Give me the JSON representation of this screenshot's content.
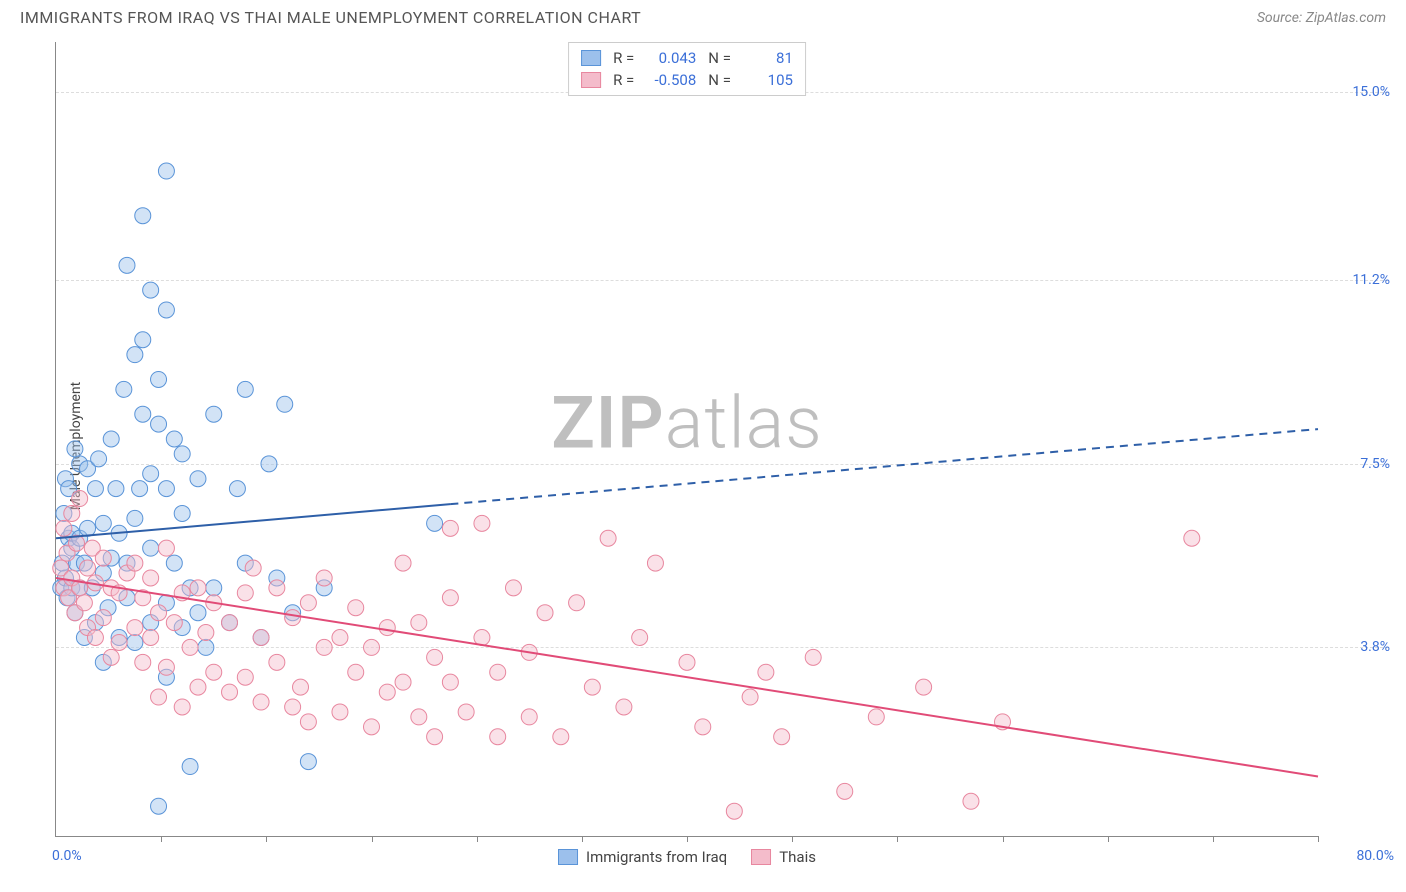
{
  "title": "IMMIGRANTS FROM IRAQ VS THAI MALE UNEMPLOYMENT CORRELATION CHART",
  "source_label": "Source:",
  "source_name": "ZipAtlas.com",
  "ylabel": "Male Unemployment",
  "watermark_bold": "ZIP",
  "watermark_light": "atlas",
  "chart": {
    "type": "scatter",
    "xlim": [
      0,
      80
    ],
    "ylim": [
      0,
      16
    ],
    "xlim_labels": [
      "0.0%",
      "80.0%"
    ],
    "ytick_values": [
      3.8,
      7.5,
      11.2,
      15.0
    ],
    "ytick_labels": [
      "3.8%",
      "7.5%",
      "11.2%",
      "15.0%"
    ],
    "xtick_count": 12,
    "grid_color": "#dddddd",
    "axis_color": "#888888",
    "background_color": "#ffffff",
    "marker_radius": 8,
    "marker_opacity": 0.45,
    "line_width": 2
  },
  "series": [
    {
      "name": "Immigrants from Iraq",
      "color_fill": "#9cc0ec",
      "color_stroke": "#5a94d8",
      "line_color": "#2e5fa8",
      "R": "0.043",
      "N": "81",
      "trend": {
        "y_at_x0": 6.0,
        "y_at_x80": 8.2,
        "solid_until_x": 25
      },
      "points": [
        [
          0.3,
          5.0
        ],
        [
          0.4,
          5.5
        ],
        [
          0.5,
          6.5
        ],
        [
          0.6,
          5.2
        ],
        [
          0.6,
          7.2
        ],
        [
          0.7,
          4.8
        ],
        [
          0.8,
          6.0
        ],
        [
          0.8,
          7.0
        ],
        [
          1.0,
          5.0
        ],
        [
          1.0,
          5.8
        ],
        [
          1.0,
          6.1
        ],
        [
          1.2,
          4.5
        ],
        [
          1.2,
          7.8
        ],
        [
          1.3,
          5.5
        ],
        [
          1.5,
          5.0
        ],
        [
          1.5,
          6.0
        ],
        [
          1.5,
          7.5
        ],
        [
          1.8,
          4.0
        ],
        [
          1.8,
          5.5
        ],
        [
          2.0,
          6.2
        ],
        [
          2.0,
          7.4
        ],
        [
          2.3,
          5.0
        ],
        [
          2.5,
          4.3
        ],
        [
          2.5,
          7.0
        ],
        [
          2.7,
          7.6
        ],
        [
          3.0,
          3.5
        ],
        [
          3.0,
          5.3
        ],
        [
          3.0,
          6.3
        ],
        [
          3.3,
          4.6
        ],
        [
          3.5,
          8.0
        ],
        [
          3.5,
          5.6
        ],
        [
          3.8,
          7.0
        ],
        [
          4.0,
          4.0
        ],
        [
          4.0,
          6.1
        ],
        [
          4.3,
          9.0
        ],
        [
          4.5,
          4.8
        ],
        [
          4.5,
          5.5
        ],
        [
          4.5,
          11.5
        ],
        [
          5.0,
          3.9
        ],
        [
          5.0,
          6.4
        ],
        [
          5.0,
          9.7
        ],
        [
          5.3,
          7.0
        ],
        [
          5.5,
          8.5
        ],
        [
          5.5,
          10.0
        ],
        [
          5.5,
          12.5
        ],
        [
          6.0,
          4.3
        ],
        [
          6.0,
          5.8
        ],
        [
          6.0,
          7.3
        ],
        [
          6.0,
          11.0
        ],
        [
          6.5,
          0.6
        ],
        [
          6.5,
          8.3
        ],
        [
          6.5,
          9.2
        ],
        [
          7.0,
          3.2
        ],
        [
          7.0,
          4.7
        ],
        [
          7.0,
          7.0
        ],
        [
          7.0,
          10.6
        ],
        [
          7.0,
          13.4
        ],
        [
          7.5,
          5.5
        ],
        [
          7.5,
          8.0
        ],
        [
          8.0,
          4.2
        ],
        [
          8.0,
          6.5
        ],
        [
          8.0,
          7.7
        ],
        [
          8.5,
          1.4
        ],
        [
          8.5,
          5.0
        ],
        [
          9.0,
          4.5
        ],
        [
          9.0,
          7.2
        ],
        [
          9.5,
          3.8
        ],
        [
          10.0,
          5.0
        ],
        [
          10.0,
          8.5
        ],
        [
          11.0,
          4.3
        ],
        [
          11.5,
          7.0
        ],
        [
          12.0,
          5.5
        ],
        [
          12.0,
          9.0
        ],
        [
          13.0,
          4.0
        ],
        [
          13.5,
          7.5
        ],
        [
          14.0,
          5.2
        ],
        [
          14.5,
          8.7
        ],
        [
          15.0,
          4.5
        ],
        [
          16.0,
          1.5
        ],
        [
          17.0,
          5.0
        ],
        [
          24.0,
          6.3
        ]
      ]
    },
    {
      "name": "Thais",
      "color_fill": "#f4bccb",
      "color_stroke": "#e8879f",
      "line_color": "#e14b77",
      "R": "-0.508",
      "N": "105",
      "trend": {
        "y_at_x0": 5.2,
        "y_at_x80": 1.2,
        "solid_until_x": 80
      },
      "points": [
        [
          0.3,
          5.4
        ],
        [
          0.5,
          5.0
        ],
        [
          0.5,
          6.2
        ],
        [
          0.7,
          5.7
        ],
        [
          0.8,
          4.8
        ],
        [
          1.0,
          6.5
        ],
        [
          1.0,
          5.2
        ],
        [
          1.2,
          4.5
        ],
        [
          1.3,
          5.9
        ],
        [
          1.5,
          5.0
        ],
        [
          1.5,
          6.8
        ],
        [
          1.8,
          4.7
        ],
        [
          2.0,
          5.4
        ],
        [
          2.0,
          4.2
        ],
        [
          2.3,
          5.8
        ],
        [
          2.5,
          4.0
        ],
        [
          2.5,
          5.1
        ],
        [
          3.0,
          4.4
        ],
        [
          3.0,
          5.6
        ],
        [
          3.5,
          3.6
        ],
        [
          3.5,
          5.0
        ],
        [
          4.0,
          4.9
        ],
        [
          4.0,
          3.9
        ],
        [
          4.5,
          5.3
        ],
        [
          5.0,
          4.2
        ],
        [
          5.0,
          5.5
        ],
        [
          5.5,
          3.5
        ],
        [
          5.5,
          4.8
        ],
        [
          6.0,
          4.0
        ],
        [
          6.0,
          5.2
        ],
        [
          6.5,
          2.8
        ],
        [
          6.5,
          4.5
        ],
        [
          7.0,
          5.8
        ],
        [
          7.0,
          3.4
        ],
        [
          7.5,
          4.3
        ],
        [
          8.0,
          4.9
        ],
        [
          8.0,
          2.6
        ],
        [
          8.5,
          3.8
        ],
        [
          9.0,
          5.0
        ],
        [
          9.0,
          3.0
        ],
        [
          9.5,
          4.1
        ],
        [
          10.0,
          3.3
        ],
        [
          10.0,
          4.7
        ],
        [
          11.0,
          2.9
        ],
        [
          11.0,
          4.3
        ],
        [
          12.0,
          4.9
        ],
        [
          12.0,
          3.2
        ],
        [
          12.5,
          5.4
        ],
        [
          13.0,
          2.7
        ],
        [
          13.0,
          4.0
        ],
        [
          14.0,
          3.5
        ],
        [
          14.0,
          5.0
        ],
        [
          15.0,
          2.6
        ],
        [
          15.0,
          4.4
        ],
        [
          15.5,
          3.0
        ],
        [
          16.0,
          4.7
        ],
        [
          16.0,
          2.3
        ],
        [
          17.0,
          3.8
        ],
        [
          17.0,
          5.2
        ],
        [
          18.0,
          2.5
        ],
        [
          18.0,
          4.0
        ],
        [
          19.0,
          3.3
        ],
        [
          19.0,
          4.6
        ],
        [
          20.0,
          2.2
        ],
        [
          20.0,
          3.8
        ],
        [
          21.0,
          4.2
        ],
        [
          21.0,
          2.9
        ],
        [
          22.0,
          5.5
        ],
        [
          22.0,
          3.1
        ],
        [
          23.0,
          2.4
        ],
        [
          23.0,
          4.3
        ],
        [
          24.0,
          3.6
        ],
        [
          24.0,
          2.0
        ],
        [
          25.0,
          4.8
        ],
        [
          25.0,
          6.2
        ],
        [
          25.0,
          3.1
        ],
        [
          26.0,
          2.5
        ],
        [
          27.0,
          4.0
        ],
        [
          27.0,
          6.3
        ],
        [
          28.0,
          3.3
        ],
        [
          28.0,
          2.0
        ],
        [
          29.0,
          5.0
        ],
        [
          30.0,
          3.7
        ],
        [
          30.0,
          2.4
        ],
        [
          31.0,
          4.5
        ],
        [
          32.0,
          2.0
        ],
        [
          33.0,
          4.7
        ],
        [
          34.0,
          3.0
        ],
        [
          35.0,
          6.0
        ],
        [
          36.0,
          2.6
        ],
        [
          37.0,
          4.0
        ],
        [
          38.0,
          5.5
        ],
        [
          40.0,
          3.5
        ],
        [
          41.0,
          2.2
        ],
        [
          43.0,
          0.5
        ],
        [
          44.0,
          2.8
        ],
        [
          45.0,
          3.3
        ],
        [
          46.0,
          2.0
        ],
        [
          48.0,
          3.6
        ],
        [
          50.0,
          0.9
        ],
        [
          52.0,
          2.4
        ],
        [
          55.0,
          3.0
        ],
        [
          58.0,
          0.7
        ],
        [
          60.0,
          2.3
        ],
        [
          72.0,
          6.0
        ]
      ]
    }
  ],
  "legend": {
    "R_label": "R =",
    "N_label": "N ="
  }
}
